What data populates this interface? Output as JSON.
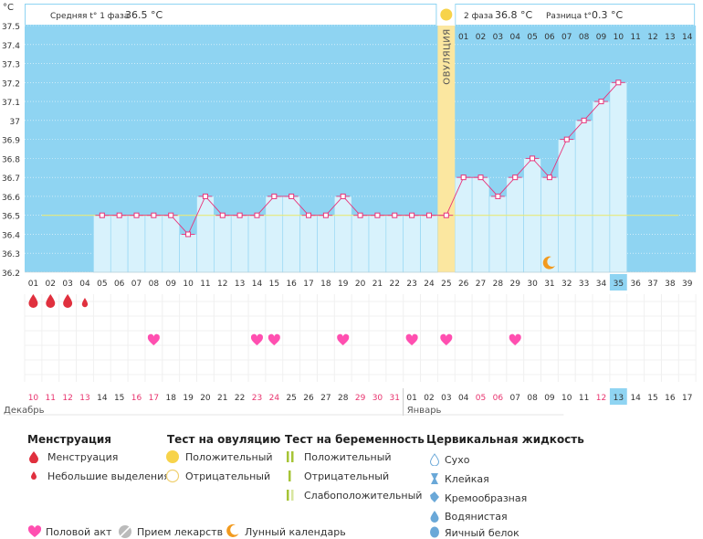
{
  "y_unit": "°C",
  "summary": {
    "phase1_label": "Средняя t° 1 фаза",
    "phase1_value": "36.5 °C",
    "phase2_label": "2 фаза",
    "phase2_value": "36.8 °C",
    "diff_label": "Разница t°",
    "diff_value": "0.3 °C"
  },
  "ovulation_label": "ОВУЛЯЦИЯ",
  "ovulation_day": 25,
  "current_day": 35,
  "phase2_days": [
    "01",
    "02",
    "03",
    "04",
    "05",
    "06",
    "07",
    "08",
    "09",
    "10",
    "11",
    "12",
    "13",
    "14"
  ],
  "cycle_days": [
    "01",
    "02",
    "03",
    "04",
    "05",
    "06",
    "07",
    "08",
    "09",
    "10",
    "11",
    "12",
    "13",
    "14",
    "15",
    "16",
    "17",
    "18",
    "19",
    "20",
    "21",
    "22",
    "23",
    "24",
    "25",
    "26",
    "27",
    "28",
    "29",
    "30",
    "31",
    "32",
    "33",
    "34",
    "35",
    "36",
    "37",
    "38",
    "39"
  ],
  "date_days": [
    "10",
    "11",
    "12",
    "13",
    "14",
    "15",
    "16",
    "17",
    "18",
    "19",
    "20",
    "21",
    "22",
    "23",
    "24",
    "25",
    "26",
    "27",
    "28",
    "29",
    "30",
    "31",
    "01",
    "02",
    "03",
    "04",
    "05",
    "06",
    "07",
    "08",
    "09",
    "10",
    "11",
    "12",
    "13",
    "14",
    "15",
    "16",
    "17"
  ],
  "date_red_idx": [
    0,
    1,
    2,
    3,
    6,
    7,
    13,
    14,
    19,
    20,
    21,
    26,
    27,
    33
  ],
  "month_dec": "Декабрь",
  "month_jan": "Январь",
  "chart_data": {
    "type": "line",
    "ylabel": "°C",
    "ylim": [
      36.2,
      37.5
    ],
    "yticks": [
      "36.2",
      "36.3",
      "36.4",
      "36.5",
      "36.6",
      "36.7",
      "36.8",
      "36.9",
      "37",
      "37.1",
      "37.2",
      "37.3",
      "37.4",
      "37.5"
    ],
    "coverline": 36.5,
    "days": [
      5,
      6,
      7,
      8,
      9,
      10,
      11,
      12,
      13,
      14,
      15,
      16,
      17,
      18,
      19,
      20,
      21,
      22,
      23,
      24,
      25,
      26,
      27,
      28,
      29,
      30,
      31,
      32,
      33,
      34,
      35
    ],
    "temps": [
      36.5,
      36.5,
      36.5,
      36.5,
      36.5,
      36.4,
      36.6,
      36.5,
      36.5,
      36.5,
      36.6,
      36.6,
      36.5,
      36.5,
      36.6,
      36.5,
      36.5,
      36.5,
      36.5,
      36.5,
      36.5,
      36.7,
      36.7,
      36.6,
      36.7,
      36.8,
      36.7,
      36.9,
      37.0,
      37.1,
      37.2
    ]
  },
  "menstruation_days": [
    1,
    2,
    3,
    4
  ],
  "menstruation_small_days": [
    4
  ],
  "intercourse_days": [
    8,
    14,
    15,
    19,
    23,
    25,
    29
  ],
  "moon_day": 31,
  "legend": {
    "menstruation_title": "Менструация",
    "menstruation": "Менструация",
    "spotting": "Небольшие выделения",
    "ovtest_title": "Тест на овуляцию",
    "ov_positive": "Положительный",
    "ov_negative": "Отрицательный",
    "pregtest_title": "Тест на беременность",
    "preg_positive": "Положительный",
    "preg_negative": "Отрицательный",
    "preg_weak": "Слабоположительный",
    "cervical_title": "Цервикальная жидкость",
    "dry": "Сухо",
    "sticky": "Клейкая",
    "creamy": "Кремообразная",
    "watery": "Водянистая",
    "eggwhite": "Яичный белок",
    "intercourse": "Половой акт",
    "medication": "Прием лекарств",
    "lunar": "Лунный календарь"
  }
}
